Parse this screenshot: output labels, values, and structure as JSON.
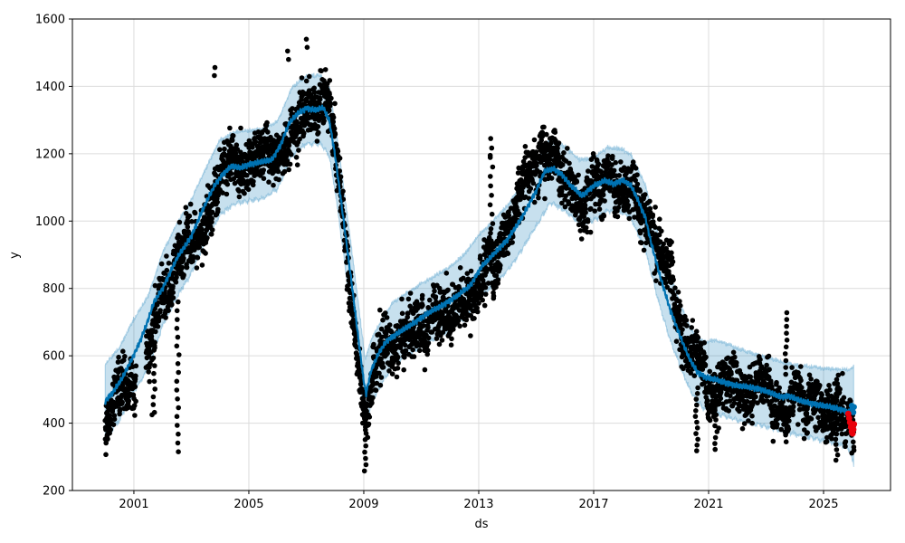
{
  "chart_data": {
    "type": "scatter",
    "title": "",
    "xlabel": "ds",
    "ylabel": "y",
    "xlim": [
      1998.86,
      2027.33
    ],
    "ylim": [
      200,
      1600
    ],
    "grid": true,
    "legend_position": "none",
    "xticks": {
      "values": [
        2001,
        2005,
        2009,
        2013,
        2017,
        2021,
        2025
      ],
      "labels": [
        "2001",
        "2005",
        "2009",
        "2013",
        "2017",
        "2021",
        "2025"
      ]
    },
    "yticks": {
      "values": [
        200,
        400,
        600,
        800,
        1000,
        1200,
        1400,
        1600
      ],
      "labels": [
        "200",
        "400",
        "600",
        "800",
        "1000",
        "1200",
        "1400",
        "1600"
      ]
    },
    "colors": {
      "trend": "#0072B2",
      "band": "#0072B2",
      "band_fill_opacity": 0.22,
      "scatter": "#000000",
      "anomaly": "#e8000b",
      "grid": "#dcdcdc",
      "spine": "#000000",
      "text": "#000000",
      "background": "#ffffff"
    },
    "trend": [
      [
        2000.0,
        465
      ],
      [
        2000.3,
        495
      ],
      [
        2000.6,
        535
      ],
      [
        2000.9,
        585
      ],
      [
        2001.2,
        640
      ],
      [
        2001.45,
        695
      ],
      [
        2001.7,
        760
      ],
      [
        2002.0,
        800
      ],
      [
        2002.5,
        890
      ],
      [
        2003.0,
        955
      ],
      [
        2003.4,
        1035
      ],
      [
        2003.8,
        1105
      ],
      [
        2004.1,
        1140
      ],
      [
        2004.4,
        1163
      ],
      [
        2004.7,
        1158
      ],
      [
        2005.0,
        1168
      ],
      [
        2005.4,
        1175
      ],
      [
        2005.8,
        1182
      ],
      [
        2006.1,
        1225
      ],
      [
        2006.4,
        1290
      ],
      [
        2006.7,
        1320
      ],
      [
        2007.0,
        1335
      ],
      [
        2007.3,
        1330
      ],
      [
        2007.6,
        1336
      ],
      [
        2007.8,
        1298
      ],
      [
        2008.0,
        1195
      ],
      [
        2008.3,
        1000
      ],
      [
        2008.6,
        800
      ],
      [
        2008.9,
        590
      ],
      [
        2009.0,
        525
      ],
      [
        2009.08,
        487
      ],
      [
        2009.25,
        555
      ],
      [
        2009.5,
        605
      ],
      [
        2009.8,
        645
      ],
      [
        2010.2,
        668
      ],
      [
        2010.7,
        695
      ],
      [
        2011.2,
        725
      ],
      [
        2011.7,
        748
      ],
      [
        2012.2,
        775
      ],
      [
        2012.7,
        808
      ],
      [
        2013.1,
        865
      ],
      [
        2013.5,
        900
      ],
      [
        2014.0,
        945
      ],
      [
        2014.5,
        1010
      ],
      [
        2015.0,
        1090
      ],
      [
        2015.3,
        1148
      ],
      [
        2015.6,
        1155
      ],
      [
        2015.9,
        1138
      ],
      [
        2016.2,
        1105
      ],
      [
        2016.6,
        1075
      ],
      [
        2017.0,
        1105
      ],
      [
        2017.4,
        1120
      ],
      [
        2017.7,
        1110
      ],
      [
        2018.0,
        1122
      ],
      [
        2018.3,
        1105
      ],
      [
        2018.5,
        1070
      ],
      [
        2018.8,
        1010
      ],
      [
        2019.0,
        935
      ],
      [
        2019.3,
        840
      ],
      [
        2019.65,
        740
      ],
      [
        2020.0,
        660
      ],
      [
        2020.3,
        597
      ],
      [
        2020.6,
        552
      ],
      [
        2020.9,
        536
      ],
      [
        2021.2,
        530
      ],
      [
        2021.5,
        522
      ],
      [
        2022.0,
        511
      ],
      [
        2022.4,
        507
      ],
      [
        2022.8,
        501
      ],
      [
        2023.2,
        488
      ],
      [
        2023.5,
        478
      ],
      [
        2023.8,
        481
      ],
      [
        2024.2,
        466
      ],
      [
        2024.5,
        460
      ],
      [
        2024.8,
        455
      ],
      [
        2025.1,
        450
      ],
      [
        2025.4,
        445
      ],
      [
        2025.7,
        438
      ],
      [
        2025.95,
        431
      ],
      [
        2026.07,
        442
      ]
    ],
    "band": [
      [
        2000.0,
        358,
        578
      ],
      [
        2000.5,
        408,
        628
      ],
      [
        2001.0,
        495,
        712
      ],
      [
        2001.5,
        562,
        778
      ],
      [
        2002.0,
        690,
        905
      ],
      [
        2002.5,
        775,
        990
      ],
      [
        2003.0,
        845,
        1060
      ],
      [
        2003.5,
        938,
        1152
      ],
      [
        2004.0,
        1018,
        1240
      ],
      [
        2004.5,
        1052,
        1265
      ],
      [
        2005.0,
        1060,
        1270
      ],
      [
        2005.5,
        1068,
        1278
      ],
      [
        2006.0,
        1095,
        1300
      ],
      [
        2006.5,
        1195,
        1400
      ],
      [
        2007.0,
        1230,
        1432
      ],
      [
        2007.5,
        1230,
        1432
      ],
      [
        2007.8,
        1192,
        1395
      ],
      [
        2008.0,
        1090,
        1292
      ],
      [
        2008.3,
        898,
        1100
      ],
      [
        2008.6,
        700,
        900
      ],
      [
        2008.9,
        492,
        692
      ],
      [
        2009.05,
        392,
        585
      ],
      [
        2009.3,
        468,
        655
      ],
      [
        2009.6,
        512,
        700
      ],
      [
        2010.0,
        572,
        758
      ],
      [
        2010.5,
        600,
        788
      ],
      [
        2011.0,
        628,
        818
      ],
      [
        2011.5,
        652,
        842
      ],
      [
        2012.0,
        678,
        868
      ],
      [
        2012.5,
        712,
        902
      ],
      [
        2013.0,
        768,
        958
      ],
      [
        2013.5,
        808,
        998
      ],
      [
        2014.0,
        852,
        1042
      ],
      [
        2014.5,
        915,
        1108
      ],
      [
        2015.0,
        985,
        1175
      ],
      [
        2015.5,
        1055,
        1245
      ],
      [
        2016.0,
        1030,
        1222
      ],
      [
        2016.5,
        995,
        1185
      ],
      [
        2017.0,
        1002,
        1192
      ],
      [
        2017.5,
        1032,
        1222
      ],
      [
        2018.0,
        1025,
        1215
      ],
      [
        2018.3,
        1008,
        1198
      ],
      [
        2018.8,
        915,
        1105
      ],
      [
        2019.0,
        845,
        1035
      ],
      [
        2019.3,
        748,
        938
      ],
      [
        2019.65,
        650,
        838
      ],
      [
        2020.0,
        570,
        758
      ],
      [
        2020.3,
        508,
        692
      ],
      [
        2020.6,
        462,
        648
      ],
      [
        2020.9,
        440,
        640
      ],
      [
        2021.2,
        430,
        648
      ],
      [
        2021.6,
        420,
        638
      ],
      [
        2022.0,
        408,
        625
      ],
      [
        2022.5,
        400,
        612
      ],
      [
        2023.0,
        390,
        600
      ],
      [
        2023.5,
        378,
        585
      ],
      [
        2024.0,
        368,
        572
      ],
      [
        2024.5,
        358,
        566
      ],
      [
        2025.0,
        348,
        560
      ],
      [
        2025.5,
        338,
        556
      ],
      [
        2025.9,
        322,
        556
      ],
      [
        2026.07,
        268,
        568
      ]
    ],
    "scatter_model": {
      "seed": 1337,
      "start": 2000.0,
      "end": 2026.06,
      "per_year": 160,
      "slow_phi": 0.988,
      "slow_sigma": 7,
      "fast_sigma": 37,
      "clamp": 212,
      "init_dev": -55,
      "radius": 2.8,
      "gaps": [
        [
          2001.08,
          2001.42
        ]
      ]
    },
    "streaks": [
      [
        2001.72,
        432,
        640,
        10
      ],
      [
        2002.53,
        315,
        760,
        18
      ],
      [
        2009.04,
        258,
        500,
        14
      ],
      [
        2013.44,
        880,
        1245,
        14
      ],
      [
        2020.58,
        318,
        505,
        12
      ],
      [
        2021.25,
        322,
        480,
        10
      ],
      [
        2023.7,
        545,
        728,
        10
      ],
      [
        2025.45,
        290,
        430,
        10
      ]
    ],
    "outliers": [
      [
        2000.08,
        366
      ],
      [
        2001.63,
        425
      ],
      [
        2003.8,
        1432
      ],
      [
        2003.82,
        1456
      ],
      [
        2006.35,
        1505
      ],
      [
        2006.38,
        1480
      ],
      [
        2007.0,
        1540
      ],
      [
        2007.03,
        1516
      ],
      [
        2013.4,
        1195
      ]
    ],
    "forecast_end_markers": [
      [
        2025.98,
        452
      ],
      [
        2026.01,
        443
      ],
      [
        2026.04,
        432
      ],
      [
        2026.06,
        448
      ]
    ],
    "anomalies_red": [
      [
        2025.86,
        428
      ],
      [
        2025.89,
        415
      ],
      [
        2025.92,
        402
      ],
      [
        2025.95,
        388
      ],
      [
        2025.98,
        376
      ],
      [
        2026.01,
        369
      ],
      [
        2026.04,
        381
      ],
      [
        2026.06,
        397
      ]
    ]
  }
}
